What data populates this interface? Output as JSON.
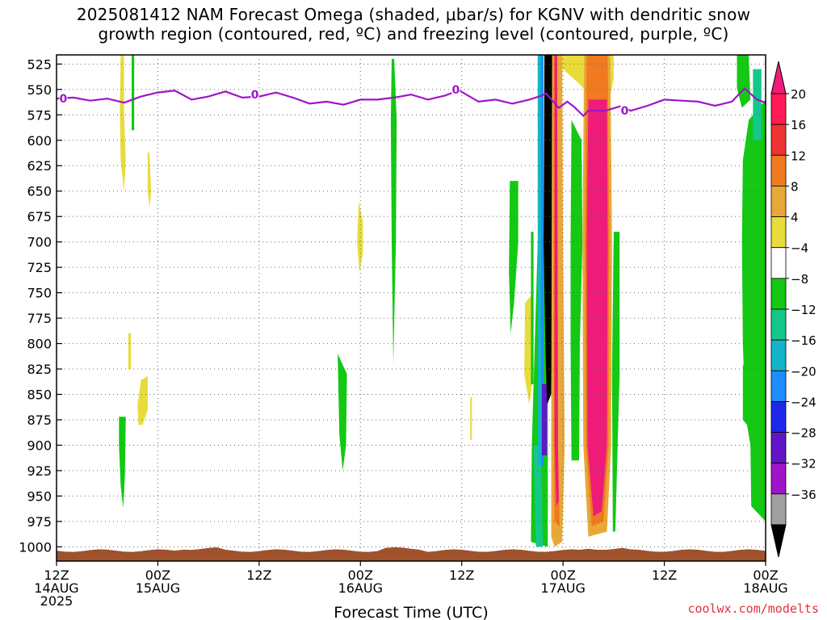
{
  "title_line1": "2025081412 NAM Forecast Omega (shaded, μbar/s) for KGNV with dendritic snow",
  "title_line2": "growth region (contoured, red, ºC) and freezing level (contoured, purple, ºC)",
  "credit": "coolwx.com/modelts",
  "chart_data": {
    "type": "time-height cross section",
    "xlabel": "Forecast Time (UTC)",
    "ylabel": "",
    "x_ticks": [
      {
        "hour": 0,
        "l1": "12Z",
        "l2": "14AUG",
        "l3": "2025"
      },
      {
        "hour": 12,
        "l1": "00Z",
        "l2": "15AUG",
        "l3": ""
      },
      {
        "hour": 24,
        "l1": "12Z",
        "l2": "",
        "l3": ""
      },
      {
        "hour": 36,
        "l1": "00Z",
        "l2": "16AUG",
        "l3": ""
      },
      {
        "hour": 48,
        "l1": "12Z",
        "l2": "",
        "l3": ""
      },
      {
        "hour": 60,
        "l1": "00Z",
        "l2": "17AUG",
        "l3": ""
      },
      {
        "hour": 72,
        "l1": "12Z",
        "l2": "",
        "l3": ""
      },
      {
        "hour": 84,
        "l1": "00Z",
        "l2": "18AUG",
        "l3": ""
      }
    ],
    "xlim_hours": [
      0,
      84
    ],
    "pressure_levels": [
      525,
      550,
      575,
      600,
      625,
      650,
      675,
      700,
      725,
      750,
      775,
      800,
      825,
      850,
      875,
      900,
      925,
      950,
      975,
      1000
    ],
    "grid": true,
    "colorbar": {
      "labels": [
        "20",
        "16",
        "12",
        "8",
        "4",
        "−4",
        "−8",
        "−12",
        "−16",
        "−20",
        "−24",
        "−28",
        "−32",
        "−36"
      ],
      "colors": [
        "#ff1a55",
        "#ee3333",
        "#f07a20",
        "#e8a838",
        "#e8dc3c",
        "#ffffff",
        "#14c814",
        "#14c88c",
        "#14b4c8",
        "#1e8cff",
        "#1e28e8",
        "#6414c8",
        "#a014c8",
        "#a0a0a0"
      ],
      "top_arrow_color": "#ee1c78",
      "bottom_arrow_color": "#000000"
    },
    "freezing_level": {
      "label": "0",
      "color": "#a014c8",
      "points": [
        [
          0,
          559
        ],
        [
          2,
          558
        ],
        [
          4,
          561
        ],
        [
          6,
          559
        ],
        [
          8,
          563
        ],
        [
          10,
          557
        ],
        [
          12,
          553
        ],
        [
          14,
          551
        ],
        [
          16,
          560
        ],
        [
          18,
          557
        ],
        [
          20,
          552
        ],
        [
          22,
          558
        ],
        [
          24,
          557
        ],
        [
          26,
          553
        ],
        [
          28,
          558
        ],
        [
          30,
          564
        ],
        [
          32,
          562
        ],
        [
          34,
          565
        ],
        [
          36,
          560
        ],
        [
          38,
          560
        ],
        [
          40,
          558
        ],
        [
          42,
          555
        ],
        [
          44,
          560
        ],
        [
          46,
          556
        ],
        [
          47.7,
          551
        ],
        [
          50,
          562
        ],
        [
          52,
          560
        ],
        [
          54,
          564
        ],
        [
          56,
          560
        ],
        [
          57.5,
          556
        ],
        [
          58,
          554
        ],
        [
          59.5,
          568
        ],
        [
          60.5,
          562
        ],
        [
          61.3,
          567
        ],
        [
          62.4,
          576
        ],
        [
          63,
          571
        ],
        [
          65,
          571
        ],
        [
          67,
          566
        ],
        [
          68,
          571
        ],
        [
          70,
          566
        ],
        [
          72,
          560
        ],
        [
          74,
          561
        ],
        [
          76,
          562
        ],
        [
          78,
          566
        ],
        [
          80,
          562
        ],
        [
          81.5,
          549
        ],
        [
          83,
          560
        ],
        [
          84,
          563
        ]
      ],
      "label_points": [
        [
          0.8,
          559
        ],
        [
          23.5,
          555
        ],
        [
          47.3,
          550
        ],
        [
          67.3,
          571
        ]
      ]
    },
    "omega_regions": [
      {
        "value": 4,
        "color": "#e8dc3c",
        "pts": [
          [
            7.6,
            516
          ],
          [
            8.0,
            516
          ],
          [
            8.0,
            570
          ],
          [
            8.2,
            620
          ],
          [
            8.0,
            650
          ],
          [
            7.6,
            620
          ],
          [
            7.5,
            570
          ]
        ]
      },
      {
        "value": 4,
        "color": "#e8dc3c",
        "pts": [
          [
            10.8,
            612
          ],
          [
            11.0,
            612
          ],
          [
            11.2,
            650
          ],
          [
            11.0,
            667
          ],
          [
            10.8,
            650
          ]
        ]
      },
      {
        "value": 4,
        "color": "#e8dc3c",
        "pts": [
          [
            8.5,
            790
          ],
          [
            8.8,
            790
          ],
          [
            8.8,
            825
          ],
          [
            8.5,
            825
          ]
        ]
      },
      {
        "value": 4,
        "color": "#e8dc3c",
        "pts": [
          [
            10.0,
            836
          ],
          [
            10.8,
            832
          ],
          [
            10.8,
            865
          ],
          [
            10.2,
            880
          ],
          [
            9.7,
            880
          ],
          [
            9.6,
            860
          ]
        ]
      },
      {
        "value": 4,
        "color": "#e8dc3c",
        "pts": [
          [
            35.8,
            660
          ],
          [
            36.3,
            680
          ],
          [
            36.3,
            710
          ],
          [
            35.9,
            730
          ],
          [
            35.6,
            700
          ]
        ]
      },
      {
        "value": 4,
        "color": "#e8dc3c",
        "pts": [
          [
            49.0,
            853
          ],
          [
            49.2,
            853
          ],
          [
            49.2,
            895
          ],
          [
            49.0,
            895
          ]
        ]
      },
      {
        "value": 4,
        "color": "#e8dc3c",
        "pts": [
          [
            55.5,
            760
          ],
          [
            56.5,
            750
          ],
          [
            56.5,
            830
          ],
          [
            56.0,
            860
          ],
          [
            55.4,
            830
          ]
        ]
      },
      {
        "value": 4,
        "color": "#e8dc3c",
        "pts": [
          [
            58.3,
            516
          ],
          [
            66.0,
            516
          ],
          [
            66.0,
            540
          ],
          [
            65.5,
            560
          ],
          [
            64.5,
            540
          ],
          [
            63.5,
            560
          ],
          [
            62.0,
            545
          ],
          [
            60.0,
            530
          ],
          [
            58.5,
            560
          ]
        ]
      },
      {
        "value": -4,
        "color": "#14c814",
        "pts": [
          [
            8.9,
            516
          ],
          [
            9.2,
            516
          ],
          [
            9.2,
            590
          ],
          [
            8.9,
            590
          ]
        ]
      },
      {
        "value": -4,
        "color": "#14c814",
        "pts": [
          [
            7.4,
            872
          ],
          [
            8.2,
            872
          ],
          [
            8.1,
            930
          ],
          [
            7.9,
            962
          ],
          [
            7.6,
            940
          ],
          [
            7.4,
            900
          ]
        ]
      },
      {
        "value": -4,
        "color": "#14c814",
        "pts": [
          [
            33.3,
            810
          ],
          [
            34.4,
            830
          ],
          [
            34.3,
            900
          ],
          [
            33.9,
            925
          ],
          [
            33.5,
            890
          ]
        ]
      },
      {
        "value": -4,
        "color": "#14c814",
        "pts": [
          [
            39.7,
            520
          ],
          [
            40.0,
            520
          ],
          [
            40.3,
            580
          ],
          [
            40.2,
            700
          ],
          [
            39.9,
            820
          ],
          [
            39.7,
            700
          ],
          [
            39.6,
            580
          ]
        ]
      },
      {
        "value": -4,
        "color": "#14c814",
        "pts": [
          [
            53.7,
            640
          ],
          [
            54.7,
            640
          ],
          [
            54.7,
            700
          ],
          [
            54.2,
            760
          ],
          [
            53.8,
            790
          ],
          [
            53.6,
            730
          ]
        ]
      },
      {
        "value": -4,
        "color": "#14c814",
        "pts": [
          [
            56.2,
            690
          ],
          [
            56.5,
            690
          ],
          [
            56.5,
            840
          ],
          [
            56.2,
            840
          ]
        ]
      },
      {
        "value": -4,
        "color": "#14c814",
        "pts": [
          [
            57.0,
            700
          ],
          [
            58.2,
            690
          ],
          [
            58.2,
            1000
          ],
          [
            56.2,
            995
          ],
          [
            56.3,
            900
          ]
        ]
      },
      {
        "value": -4,
        "color": "#14c814",
        "pts": [
          [
            61.0,
            580
          ],
          [
            62.2,
            600
          ],
          [
            62.3,
            700
          ],
          [
            62.0,
            800
          ],
          [
            61.9,
            915
          ],
          [
            61.0,
            915
          ],
          [
            60.9,
            800
          ],
          [
            60.9,
            700
          ]
        ]
      },
      {
        "value": -4,
        "color": "#14c814",
        "pts": [
          [
            66.0,
            690
          ],
          [
            66.7,
            690
          ],
          [
            66.7,
            830
          ],
          [
            66.2,
            985
          ],
          [
            65.9,
            985
          ],
          [
            65.8,
            830
          ]
        ]
      },
      {
        "value": -4,
        "color": "#14c814",
        "pts": [
          [
            80.6,
            516
          ],
          [
            82.0,
            516
          ],
          [
            82.2,
            560
          ],
          [
            81.2,
            568
          ],
          [
            80.6,
            549
          ]
        ]
      },
      {
        "value": -4,
        "color": "#14c814",
        "pts": [
          [
            82.0,
            580
          ],
          [
            84,
            560
          ],
          [
            84,
            975
          ],
          [
            82.3,
            960
          ],
          [
            82.2,
            900
          ],
          [
            81.6,
            870
          ],
          [
            81.3,
            800
          ],
          [
            81.2,
            700
          ],
          [
            81.3,
            620
          ]
        ]
      },
      {
        "value": -4,
        "color": "#14c814",
        "pts": [
          [
            81.3,
            820
          ],
          [
            81.8,
            830
          ],
          [
            81.8,
            880
          ],
          [
            81.3,
            875
          ]
        ]
      },
      {
        "value": -8,
        "color": "#14c88c",
        "pts": [
          [
            82.5,
            530
          ],
          [
            83.5,
            530
          ],
          [
            83.5,
            600
          ],
          [
            82.5,
            600
          ]
        ]
      },
      {
        "value": -8,
        "color": "#14c88c",
        "pts": [
          [
            56.5,
            900
          ],
          [
            57.4,
            900
          ],
          [
            57.6,
            1000
          ],
          [
            56.8,
            1000
          ]
        ]
      },
      {
        "value": -12,
        "color": "#14b4c8",
        "pts": [
          [
            57.0,
            516
          ],
          [
            57.4,
            516
          ],
          [
            57.4,
            920
          ],
          [
            57.0,
            920
          ]
        ]
      },
      {
        "value": -16,
        "color": "#1e8cff",
        "pts": [
          [
            57.4,
            516
          ],
          [
            57.7,
            516
          ],
          [
            57.7,
            920
          ],
          [
            57.4,
            920
          ]
        ]
      },
      {
        "value": -24,
        "color": "#6414c8",
        "pts": [
          [
            57.5,
            840
          ],
          [
            58.1,
            840
          ],
          [
            58.1,
            910
          ],
          [
            57.5,
            910
          ]
        ]
      },
      {
        "value": -36,
        "color": "#000000",
        "pts": [
          [
            57.8,
            516
          ],
          [
            59.0,
            516
          ],
          [
            58.9,
            700
          ],
          [
            58.7,
            800
          ],
          [
            58.6,
            850
          ],
          [
            58.1,
            860
          ],
          [
            57.9,
            800
          ],
          [
            57.7,
            700
          ]
        ]
      },
      {
        "value": 8,
        "color": "#e8a838",
        "pts": [
          [
            58.7,
            516
          ],
          [
            59.9,
            516
          ],
          [
            60.0,
            700
          ],
          [
            60.2,
            900
          ],
          [
            59.9,
            995
          ],
          [
            59.0,
            1000
          ],
          [
            58.6,
            990
          ],
          [
            58.6,
            900
          ]
        ]
      },
      {
        "value": 16,
        "color": "#f07a20",
        "pts": [
          [
            58.9,
            516
          ],
          [
            59.3,
            516
          ],
          [
            59.4,
            900
          ],
          [
            59.6,
            980
          ],
          [
            59.0,
            975
          ],
          [
            58.9,
            900
          ]
        ]
      },
      {
        "value": 20,
        "color": "#ee1c78",
        "pts": [
          [
            59.0,
            516
          ],
          [
            59.3,
            516
          ],
          [
            59.4,
            900
          ],
          [
            59.5,
            955
          ],
          [
            59.2,
            960
          ],
          [
            59.0,
            900
          ]
        ]
      },
      {
        "value": 8,
        "color": "#e8a838",
        "pts": [
          [
            62.5,
            516
          ],
          [
            65.6,
            516
          ],
          [
            65.8,
            700
          ],
          [
            65.7,
            900
          ],
          [
            65.2,
            985
          ],
          [
            63.0,
            990
          ],
          [
            62.4,
            900
          ],
          [
            62.3,
            700
          ]
        ]
      },
      {
        "value": 16,
        "color": "#f07a20",
        "pts": [
          [
            62.8,
            516
          ],
          [
            65.3,
            516
          ],
          [
            65.5,
            700
          ],
          [
            65.4,
            900
          ],
          [
            64.8,
            975
          ],
          [
            63.4,
            980
          ],
          [
            62.7,
            900
          ],
          [
            62.6,
            700
          ]
        ]
      },
      {
        "value": 20,
        "color": "#ee1c78",
        "pts": [
          [
            63.0,
            560
          ],
          [
            65.2,
            560
          ],
          [
            65.3,
            700
          ],
          [
            65.2,
            900
          ],
          [
            64.6,
            965
          ],
          [
            63.6,
            970
          ],
          [
            62.9,
            900
          ],
          [
            62.8,
            700
          ]
        ]
      }
    ],
    "ground": {
      "color": "#a0522d",
      "label": ""
    }
  }
}
